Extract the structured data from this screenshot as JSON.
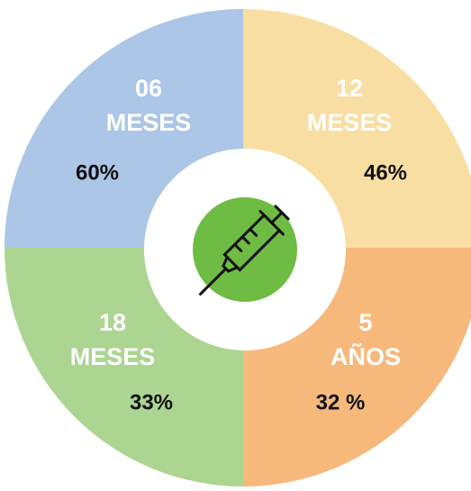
{
  "segments": [
    {
      "label_lines": [
        "06",
        "MESES"
      ],
      "percent": "60%"
    },
    {
      "label_lines": [
        "12",
        "MESES"
      ],
      "percent": "46%"
    },
    {
      "label_lines": [
        "5",
        "AÑOS"
      ],
      "percent": "32 %"
    },
    {
      "label_lines": [
        "18",
        "MESES"
      ],
      "percent": "33%"
    }
  ]
}
